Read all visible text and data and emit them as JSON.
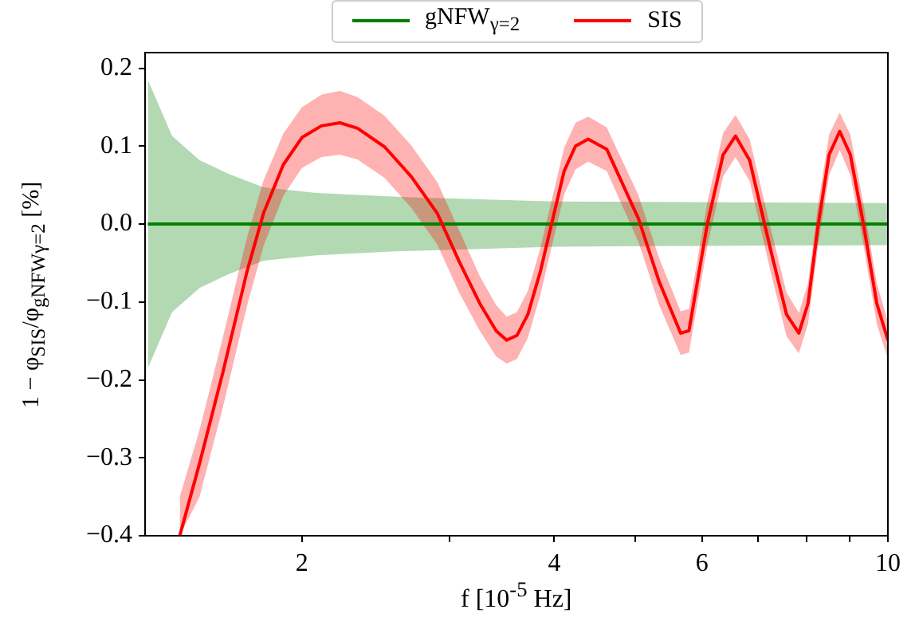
{
  "chart_data": {
    "type": "line",
    "xlabel": "f [10$^{-5}$ Hz]",
    "ylabel": "1 − φ$_{SIS}$/φ$_{gNFWγ=2}$ [%]",
    "log": "x",
    "grid": false,
    "legend": "top",
    "marker": "none",
    "line_style": "solid",
    "xlim": [
      1.31,
      10
    ],
    "xticks": [
      2,
      {
        "value": 3,
        "label": null
      },
      4,
      {
        "value": 5,
        "label": null
      },
      6,
      {
        "value": 7,
        "label": null
      },
      {
        "value": 8,
        "label": null
      },
      {
        "value": 9,
        "label": null
      },
      10
    ],
    "ylim": [
      -0.4,
      0.22
    ],
    "yticks": [
      {
        "value": -0.4,
        "label": "−0.4"
      },
      {
        "value": -0.3,
        "label": "−0.3"
      },
      {
        "value": -0.2,
        "label": "−0.2"
      },
      {
        "value": -0.1,
        "label": "−0.1"
      },
      {
        "value": 0,
        "label": "0.0"
      },
      {
        "value": 0.1,
        "label": "0.1"
      },
      {
        "value": 0.2,
        "label": "0.2"
      }
    ],
    "series": [
      {
        "name": "gNFW$_{γ=2}$",
        "color": "#008000",
        "x": [
          1.31,
          1.4,
          1.51,
          1.63,
          1.8,
          2.08,
          2.59,
          4.0,
          10
        ],
        "values": [
          0,
          0,
          0,
          0,
          0,
          0,
          0,
          0,
          0
        ],
        "lower": [
          -0.185,
          -0.113,
          -0.082,
          -0.065,
          -0.047,
          -0.04,
          -0.035,
          -0.029,
          -0.027
        ],
        "upper": [
          0.185,
          0.113,
          0.082,
          0.065,
          0.047,
          0.04,
          0.035,
          0.029,
          0.027
        ]
      },
      {
        "name": "SIS",
        "color": "#ff0000",
        "x": [
          1.43,
          1.51,
          1.61,
          1.72,
          1.8,
          1.9,
          2.0,
          2.11,
          2.22,
          2.33,
          2.51,
          2.7,
          2.9,
          3.08,
          3.26,
          3.41,
          3.51,
          3.61,
          3.72,
          3.85,
          3.97,
          4.11,
          4.24,
          4.39,
          4.62,
          5.04,
          5.34,
          5.66,
          5.79,
          6.09,
          6.36,
          6.58,
          6.84,
          7.25,
          7.57,
          7.83,
          8.03,
          8.26,
          8.51,
          8.76,
          9.02,
          9.35,
          9.7,
          10
        ],
        "values": [
          -0.4,
          -0.307,
          -0.19,
          -0.061,
          0.014,
          0.076,
          0.111,
          0.126,
          0.13,
          0.123,
          0.099,
          0.061,
          0.014,
          -0.048,
          -0.102,
          -0.137,
          -0.149,
          -0.143,
          -0.116,
          -0.061,
          0,
          0.068,
          0.1,
          0.109,
          0.096,
          0.007,
          -0.075,
          -0.14,
          -0.137,
          0,
          0.089,
          0.113,
          0.082,
          -0.034,
          -0.116,
          -0.14,
          -0.102,
          0,
          0.089,
          0.119,
          0.089,
          0,
          -0.102,
          -0.149
        ],
        "lower": [
          -0.4,
          -0.35,
          -0.235,
          -0.105,
          -0.028,
          0.036,
          0.072,
          0.086,
          0.089,
          0.083,
          0.059,
          0.021,
          -0.026,
          -0.088,
          -0.137,
          -0.17,
          -0.179,
          -0.173,
          -0.146,
          -0.091,
          -0.03,
          0.038,
          0.07,
          0.08,
          0.068,
          -0.023,
          -0.105,
          -0.168,
          -0.165,
          -0.028,
          0.061,
          0.086,
          0.055,
          -0.062,
          -0.144,
          -0.166,
          -0.128,
          -0.026,
          0.063,
          0.095,
          0.063,
          -0.026,
          -0.128,
          -0.173
        ],
        "upper": [
          -0.35,
          -0.264,
          -0.145,
          -0.017,
          0.056,
          0.116,
          0.15,
          0.166,
          0.171,
          0.163,
          0.139,
          0.101,
          0.054,
          -0.008,
          -0.067,
          -0.104,
          -0.119,
          -0.113,
          -0.086,
          -0.031,
          0.03,
          0.098,
          0.13,
          0.138,
          0.124,
          0.037,
          -0.045,
          -0.112,
          -0.109,
          0.028,
          0.117,
          0.14,
          0.109,
          -0.006,
          -0.088,
          -0.114,
          -0.076,
          0.026,
          0.115,
          0.143,
          0.115,
          0.026,
          -0.076,
          -0.125
        ]
      }
    ]
  }
}
